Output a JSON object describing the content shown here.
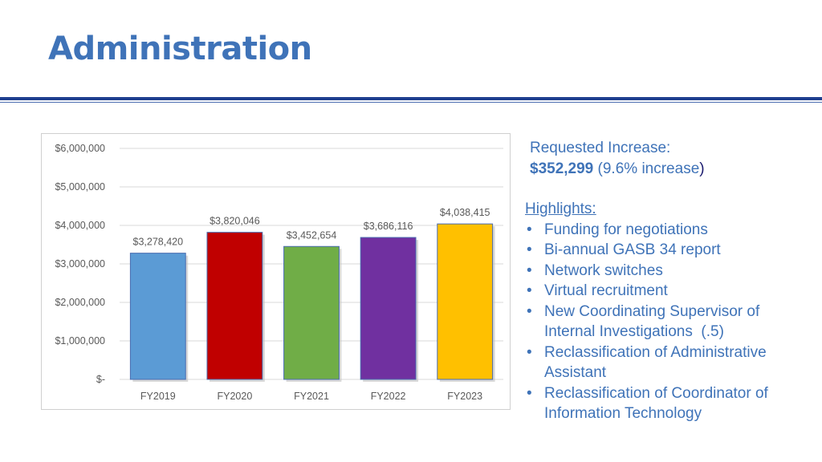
{
  "slide": {
    "title": "Administration"
  },
  "request": {
    "label": "Requested Increase:",
    "amount": "$352,299",
    "detail": "(9.6% increase",
    "detail_close": ")"
  },
  "highlights": {
    "heading": "Highlights:",
    "items": [
      "Funding for negotiations",
      "Bi-annual GASB 34 report",
      "Network switches",
      "Virtual recruitment",
      "New Coordinating Supervisor of Internal Investigations  (.5)",
      "Reclassification of Administrative Assistant",
      "Reclassification of Coordinator of Information Technology"
    ]
  },
  "chart_data": {
    "type": "bar",
    "categories": [
      "FY2019",
      "FY2020",
      "FY2021",
      "FY2022",
      "FY2023"
    ],
    "values": [
      3278420,
      3820046,
      3452654,
      3686116,
      4038415
    ],
    "data_labels": [
      "$3,278,420",
      "$3,820,046",
      "$3,452,654",
      "$3,686,116",
      "$4,038,415"
    ],
    "colors": [
      "#5b9bd5",
      "#c00000",
      "#70ad47",
      "#7030a0",
      "#ffc000"
    ],
    "ylim": [
      0,
      6000000
    ],
    "yticks": [
      0,
      1000000,
      2000000,
      3000000,
      4000000,
      5000000,
      6000000
    ],
    "ytick_labels": [
      "$-",
      "$1,000,000",
      "$2,000,000",
      "$3,000,000",
      "$4,000,000",
      "$5,000,000",
      "$6,000,000"
    ],
    "grid": true,
    "title": "",
    "xlabel": "",
    "ylabel": ""
  },
  "theme": {
    "accent": "#3f73b8",
    "rule": "#1f3f8f"
  }
}
